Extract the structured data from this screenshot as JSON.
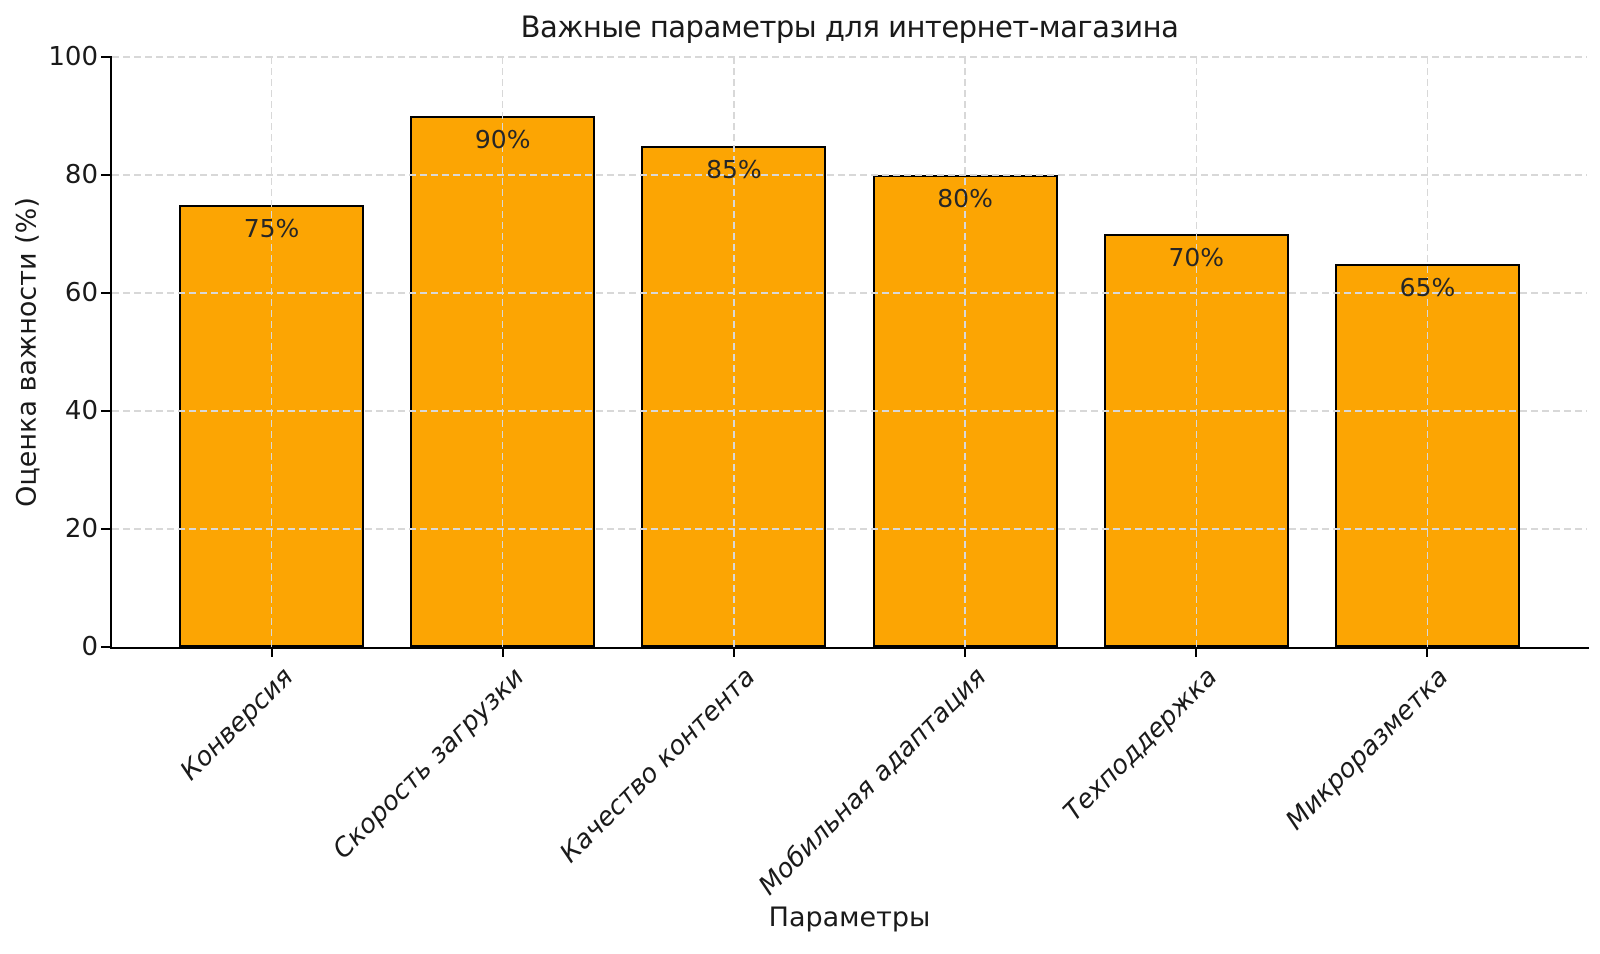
{
  "chart_data": {
    "type": "bar",
    "title": "Важные параметры для интернет-магазина",
    "xlabel": "Параметры",
    "ylabel": "Оценка важности (%)",
    "categories": [
      "Конверсия",
      "Скорость загрузки",
      "Качество контента",
      "Мобильная адаптация",
      "Техподдержка",
      "Микроразметка"
    ],
    "values": [
      75,
      90,
      85,
      80,
      70,
      65
    ],
    "bar_labels": [
      "75%",
      "90%",
      "85%",
      "80%",
      "70%",
      "65%"
    ],
    "ylim": [
      0,
      100
    ],
    "yticks": [
      0,
      20,
      40,
      60,
      80,
      100
    ],
    "grid": true,
    "grid_style": "dashed",
    "grid_on_top_of_bars": true,
    "legend_position": "none",
    "colors": {
      "bar_fill": "#FCA503",
      "bar_edge": "#000000",
      "grid": "#d8d8d8",
      "axis": "#000000",
      "text": "#1a1a1a",
      "background": "#ffffff"
    }
  }
}
